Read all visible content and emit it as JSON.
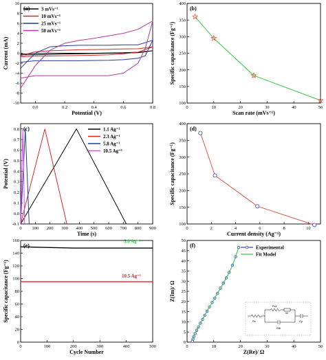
{
  "chart_data": [
    {
      "panel": "(a)",
      "type": "line",
      "xlabel": "Potential (V)",
      "ylabel": "Current (mA)",
      "xlim": [
        -0.1,
        0.8
      ],
      "ylim": [
        -10,
        10
      ],
      "xticks": [
        "0.0",
        "0.2",
        "0.4",
        "0.6",
        "0.8"
      ],
      "yticks": [
        "-10",
        "-8",
        "-6",
        "-4",
        "-2",
        "0",
        "2",
        "4",
        "6",
        "8",
        "10"
      ],
      "legend_position": "top-left",
      "series": [
        {
          "name": "3 mVs⁻¹",
          "color": "#000000",
          "x": [
            -0.1,
            0.0,
            0.1,
            0.2,
            0.3,
            0.4,
            0.5,
            0.6,
            0.7,
            0.8,
            0.7,
            0.6,
            0.5,
            0.4,
            0.3,
            0.2,
            0.1,
            0.0,
            -0.1
          ],
          "y": [
            -0.2,
            -0.05,
            0.0,
            0.0,
            0.0,
            0.0,
            0.05,
            0.1,
            0.2,
            0.5,
            0.1,
            0.05,
            0.0,
            -0.05,
            -0.1,
            -0.15,
            -0.25,
            -0.3,
            -0.35
          ]
        },
        {
          "name": "10 mVs⁻¹",
          "color": "#d62728",
          "x": [
            -0.1,
            0.0,
            0.1,
            0.2,
            0.3,
            0.4,
            0.5,
            0.6,
            0.7,
            0.8,
            0.7,
            0.6,
            0.5,
            0.4,
            0.3,
            0.2,
            0.1,
            0.0,
            -0.1
          ],
          "y": [
            -0.5,
            0.3,
            0.5,
            0.6,
            0.7,
            0.75,
            0.8,
            0.85,
            0.9,
            1.3,
            0.2,
            -0.1,
            -0.3,
            -0.4,
            -0.45,
            -0.5,
            -0.55,
            -0.6,
            -0.7
          ]
        },
        {
          "name": "25 mVs⁻¹",
          "color": "#1f3aa0",
          "x": [
            -0.1,
            0.0,
            0.1,
            0.2,
            0.3,
            0.4,
            0.5,
            0.6,
            0.7,
            0.8,
            0.75,
            0.7,
            0.6,
            0.5,
            0.4,
            0.3,
            0.2,
            0.1,
            0.0,
            -0.1
          ],
          "y": [
            -3.0,
            0.0,
            1.3,
            1.5,
            1.6,
            1.6,
            1.6,
            1.7,
            1.7,
            2.6,
            -0.5,
            -1.0,
            -1.3,
            -1.4,
            -1.45,
            -1.5,
            -1.5,
            -1.5,
            -1.5,
            -1.8
          ]
        },
        {
          "name": "50 mVs⁻¹",
          "color": "#b8399e",
          "x": [
            -0.1,
            0.0,
            0.1,
            0.2,
            0.3,
            0.4,
            0.5,
            0.6,
            0.7,
            0.8,
            0.75,
            0.7,
            0.6,
            0.5,
            0.4,
            0.3,
            0.2,
            0.1,
            0.0,
            -0.1
          ],
          "y": [
            -7.0,
            -2.5,
            0.6,
            2.0,
            2.6,
            3.0,
            3.5,
            4.0,
            4.8,
            6.5,
            1.0,
            -2.0,
            -4.0,
            -4.5,
            -4.5,
            -4.5,
            -4.5,
            -4.5,
            -4.5,
            -5.0
          ]
        }
      ]
    },
    {
      "panel": "(b)",
      "type": "line",
      "xlabel": "Scan rate (mVs⁻¹)",
      "ylabel": "Specific capacitance (Fg⁻¹)",
      "xlim": [
        0,
        50
      ],
      "ylim": [
        100,
        400
      ],
      "xticks": [
        "0",
        "10",
        "20",
        "30",
        "40",
        "50"
      ],
      "yticks": [
        "100",
        "150",
        "200",
        "250",
        "300",
        "350",
        "400"
      ],
      "series": [
        {
          "name": "",
          "color": "#2ecc40",
          "marker_color": "#e0554a",
          "marker": "star",
          "x": [
            3,
            10,
            25,
            50
          ],
          "y": [
            360,
            295,
            183,
            108
          ]
        }
      ]
    },
    {
      "panel": "(c)",
      "type": "line",
      "xlabel": "Time (s)",
      "ylabel": "Potential (V)",
      "xlim": [
        0,
        900
      ],
      "ylim": [
        -0.1,
        0.85
      ],
      "xticks": [
        "0",
        "100",
        "200",
        "300",
        "400",
        "500",
        "600",
        "700",
        "800",
        "900"
      ],
      "yticks": [
        "-0.1",
        "0.0",
        "0.1",
        "0.2",
        "0.3",
        "0.4",
        "0.5",
        "0.6",
        "0.7",
        "0.8"
      ],
      "legend_position": "top-right",
      "series": [
        {
          "name": "1.1 Ag⁻¹",
          "color": "#000000",
          "x": [
            0,
            380,
            720
          ],
          "y": [
            -0.1,
            0.8,
            -0.1
          ]
        },
        {
          "name": "2.3 Ag⁻¹",
          "color": "#d62728",
          "x": [
            0,
            165,
            315
          ],
          "y": [
            -0.1,
            0.8,
            -0.1
          ]
        },
        {
          "name": "5.8 Ag⁻¹",
          "color": "#1f3aa0",
          "x": [
            0,
            32,
            58
          ],
          "y": [
            -0.1,
            0.8,
            -0.1
          ]
        },
        {
          "name": "10.5 Ag⁻¹",
          "color": "#e040fb",
          "x": [
            0,
            15,
            27
          ],
          "y": [
            -0.1,
            0.8,
            -0.1
          ]
        }
      ]
    },
    {
      "panel": "(d)",
      "type": "line",
      "xlabel": "Current density (Ag⁻¹)",
      "ylabel": "Specific capacitance (Fg⁻¹)",
      "xlim": [
        0,
        11
      ],
      "ylim": [
        100,
        400
      ],
      "xticks": [
        "0",
        "2",
        "4",
        "6",
        "8",
        "10"
      ],
      "yticks": [
        "100",
        "150",
        "200",
        "250",
        "300",
        "350",
        "400"
      ],
      "series": [
        {
          "name": "",
          "color": "#e0554a",
          "marker_color": "#3d46c8",
          "marker": "circle",
          "x": [
            1.1,
            2.3,
            5.8,
            10.5
          ],
          "y": [
            372,
            245,
            153,
            97
          ]
        }
      ]
    },
    {
      "panel": "(e)",
      "type": "line",
      "xlabel": "Cycle Number",
      "ylabel": "Specific capacitance (Fg⁻¹)",
      "xlim": [
        0,
        500
      ],
      "ylim": [
        0,
        160
      ],
      "xticks": [
        "0",
        "100",
        "200",
        "300",
        "400",
        "500"
      ],
      "yticks": [
        "0",
        "20",
        "40",
        "60",
        "80",
        "100",
        "120",
        "140",
        "160"
      ],
      "annotations": [
        "5.8 Ag⁻¹",
        "10.5 Ag⁻¹"
      ],
      "series": [
        {
          "name": "5.8 Ag⁻¹",
          "color": "#000000",
          "x": [
            0,
            100,
            200,
            300,
            400,
            500
          ],
          "y": [
            150,
            149,
            148,
            148,
            148,
            148
          ]
        },
        {
          "name": "10.5 Ag⁻¹",
          "color": "#d62728",
          "x": [
            0,
            100,
            200,
            300,
            400,
            500
          ],
          "y": [
            95,
            95,
            95,
            95,
            95,
            95
          ]
        }
      ]
    },
    {
      "panel": "(f)",
      "type": "scatter",
      "xlabel": "Z(Re)/ Ω",
      "ylabel": "Z(Im)/ Ω",
      "xlim": [
        0,
        50
      ],
      "ylim": [
        0,
        50
      ],
      "xticks": [
        "0",
        "10",
        "20",
        "30",
        "40",
        "50"
      ],
      "yticks": [
        "0",
        "5",
        "10",
        "15",
        "20",
        "25",
        "30",
        "35",
        "40",
        "45",
        "50"
      ],
      "legend_position": "top-right",
      "circuit_labels": [
        "Rs",
        "Rct",
        "W",
        "Cdl",
        "Cp"
      ],
      "series": [
        {
          "name": "Experimental",
          "color": "#3d46c8",
          "marker": "circle",
          "x": [
            2.0,
            2.2,
            2.5,
            3.0,
            3.6,
            4.3,
            5.0,
            5.8,
            6.6,
            7.5,
            8.4,
            9.4,
            10.4,
            11.4,
            12.5,
            13.6,
            14.7,
            15.8,
            17.0,
            18.2,
            19.3
          ],
          "y": [
            0.5,
            1.5,
            2.8,
            4.2,
            5.8,
            7.5,
            9.3,
            11.2,
            13.2,
            15.2,
            17.3,
            19.5,
            21.7,
            24.0,
            26.5,
            29.0,
            31.6,
            34.3,
            37.8,
            42.0,
            46.5
          ]
        },
        {
          "name": "Fit Model",
          "color": "#2ecc40",
          "marker": "none",
          "x": [
            2.0,
            2.2,
            2.5,
            3.0,
            3.6,
            4.3,
            5.0,
            5.8,
            6.6,
            7.5,
            8.4,
            9.4,
            10.4,
            11.4,
            12.5,
            13.6,
            14.7,
            15.8,
            17.0,
            18.2,
            19.3
          ],
          "y": [
            0.5,
            1.5,
            2.8,
            4.2,
            5.8,
            7.5,
            9.3,
            11.2,
            13.2,
            15.2,
            17.3,
            19.5,
            21.7,
            24.0,
            26.5,
            29.0,
            31.6,
            34.3,
            37.8,
            42.0,
            46.5
          ]
        }
      ]
    }
  ]
}
